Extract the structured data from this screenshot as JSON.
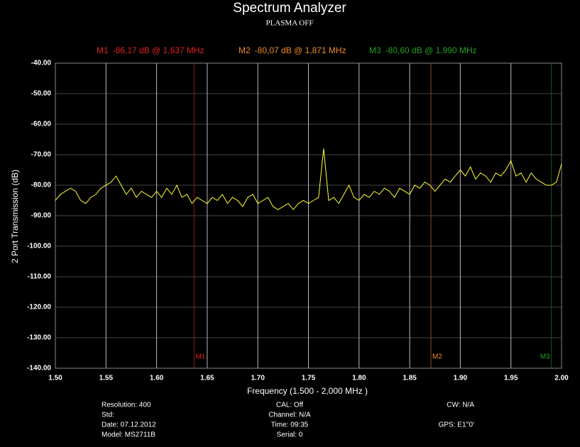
{
  "chart_data": {
    "type": "line",
    "title": "Spectrum Analyzer",
    "subtitle": "PLASMA OFF",
    "x_label": "Frequency (1.500 - 2,000 MHz )",
    "y_label": "2 Port Transmission (dB)",
    "xlim": [
      1.5,
      2.0
    ],
    "ylim": [
      -140,
      -40
    ],
    "xticks": [
      {
        "value": 1.5,
        "label": "1.50"
      },
      1.55,
      {
        "value": 1.6,
        "label": "1.60"
      },
      1.65,
      {
        "value": 1.7,
        "label": "1.70"
      },
      1.75,
      {
        "value": 1.8,
        "label": "1.80"
      },
      1.85,
      {
        "value": 1.9,
        "label": "1.90"
      },
      1.95,
      {
        "value": 2.0,
        "label": "2.00"
      }
    ],
    "yticks": [
      {
        "value": -40,
        "label": "-40.00"
      },
      {
        "value": -50,
        "label": "-50.00"
      },
      {
        "value": -60,
        "label": "-60.00"
      },
      {
        "value": -70,
        "label": "-70.00"
      },
      {
        "value": -80,
        "label": "-80.00"
      },
      {
        "value": -90,
        "label": "-90.00"
      },
      {
        "value": -100,
        "label": "-100.00"
      },
      {
        "value": -110,
        "label": "-110.00"
      },
      {
        "value": -120,
        "label": "-120.00"
      },
      {
        "value": -130,
        "label": "-130.00"
      },
      {
        "value": -140,
        "label": "-140.00"
      }
    ],
    "grid": true,
    "x": [
      1.5,
      1.505,
      1.51,
      1.515,
      1.52,
      1.525,
      1.53,
      1.535,
      1.54,
      1.545,
      1.55,
      1.555,
      1.56,
      1.565,
      1.57,
      1.575,
      1.58,
      1.585,
      1.59,
      1.595,
      1.6,
      1.605,
      1.61,
      1.615,
      1.62,
      1.625,
      1.63,
      1.635,
      1.64,
      1.645,
      1.65,
      1.655,
      1.66,
      1.665,
      1.67,
      1.675,
      1.68,
      1.685,
      1.69,
      1.695,
      1.7,
      1.705,
      1.71,
      1.715,
      1.72,
      1.725,
      1.73,
      1.735,
      1.74,
      1.745,
      1.75,
      1.755,
      1.76,
      1.765,
      1.77,
      1.775,
      1.78,
      1.785,
      1.79,
      1.795,
      1.8,
      1.805,
      1.81,
      1.815,
      1.82,
      1.825,
      1.83,
      1.835,
      1.84,
      1.845,
      1.85,
      1.855,
      1.86,
      1.865,
      1.87,
      1.875,
      1.88,
      1.885,
      1.89,
      1.895,
      1.9,
      1.905,
      1.91,
      1.915,
      1.92,
      1.925,
      1.93,
      1.935,
      1.94,
      1.945,
      1.95,
      1.955,
      1.96,
      1.965,
      1.97,
      1.975,
      1.98,
      1.985,
      1.99,
      1.995,
      2.0
    ],
    "series": [
      {
        "color": "#ffff33",
        "values": [
          -85,
          -83,
          -82,
          -81,
          -82,
          -85,
          -86,
          -84,
          -83,
          -81,
          -80,
          -79,
          -77,
          -80,
          -83,
          -81,
          -84,
          -82,
          -83,
          -84,
          -82,
          -84,
          -81,
          -83,
          -80,
          -84,
          -83,
          -86,
          -84,
          -85,
          -86,
          -84,
          -85,
          -83,
          -86,
          -84,
          -85,
          -87,
          -84,
          -83,
          -86,
          -85,
          -84,
          -87,
          -88,
          -87,
          -86,
          -88,
          -86,
          -85,
          -86,
          -85,
          -84,
          -68,
          -85,
          -84,
          -86,
          -83,
          -80,
          -84,
          -85,
          -83,
          -84,
          -82,
          -83,
          -81,
          -82,
          -84,
          -81,
          -82,
          -83,
          -80,
          -81,
          -79,
          -80,
          -82,
          -80,
          -78,
          -79,
          -77,
          -75,
          -77,
          -74,
          -78,
          -76,
          -77,
          -79,
          -76,
          -77,
          -75,
          -72,
          -77,
          -76,
          -79,
          -76,
          -78,
          -79,
          -80,
          -80,
          -79,
          -73
        ]
      }
    ],
    "markers": [
      {
        "name": "M1",
        "text": "-86,17 dB @ 1,637 MHz",
        "x": 1.637,
        "color": "#e02222",
        "line_color": "#8a1a1a"
      },
      {
        "name": "M2",
        "text": "-80,07 dB @ 1,871 MHz",
        "x": 1.871,
        "color": "#f08a2a",
        "line_color": "#8a4a1a"
      },
      {
        "name": "M3",
        "text": "-80,60 dB @ 1,990 MHz",
        "x": 1.99,
        "color": "#22a022",
        "line_color": "#1a5a1a"
      }
    ],
    "info": [
      [
        "Resolution: 400",
        "Std:",
        "Date: 07.12.2012",
        "Model: MS2711B"
      ],
      [
        "CAL: Off",
        "Channel: N/A",
        "Time: 09:35",
        "Serial: 0"
      ],
      [
        "CW: N/A",
        "GPS:    E1°0'"
      ]
    ]
  }
}
